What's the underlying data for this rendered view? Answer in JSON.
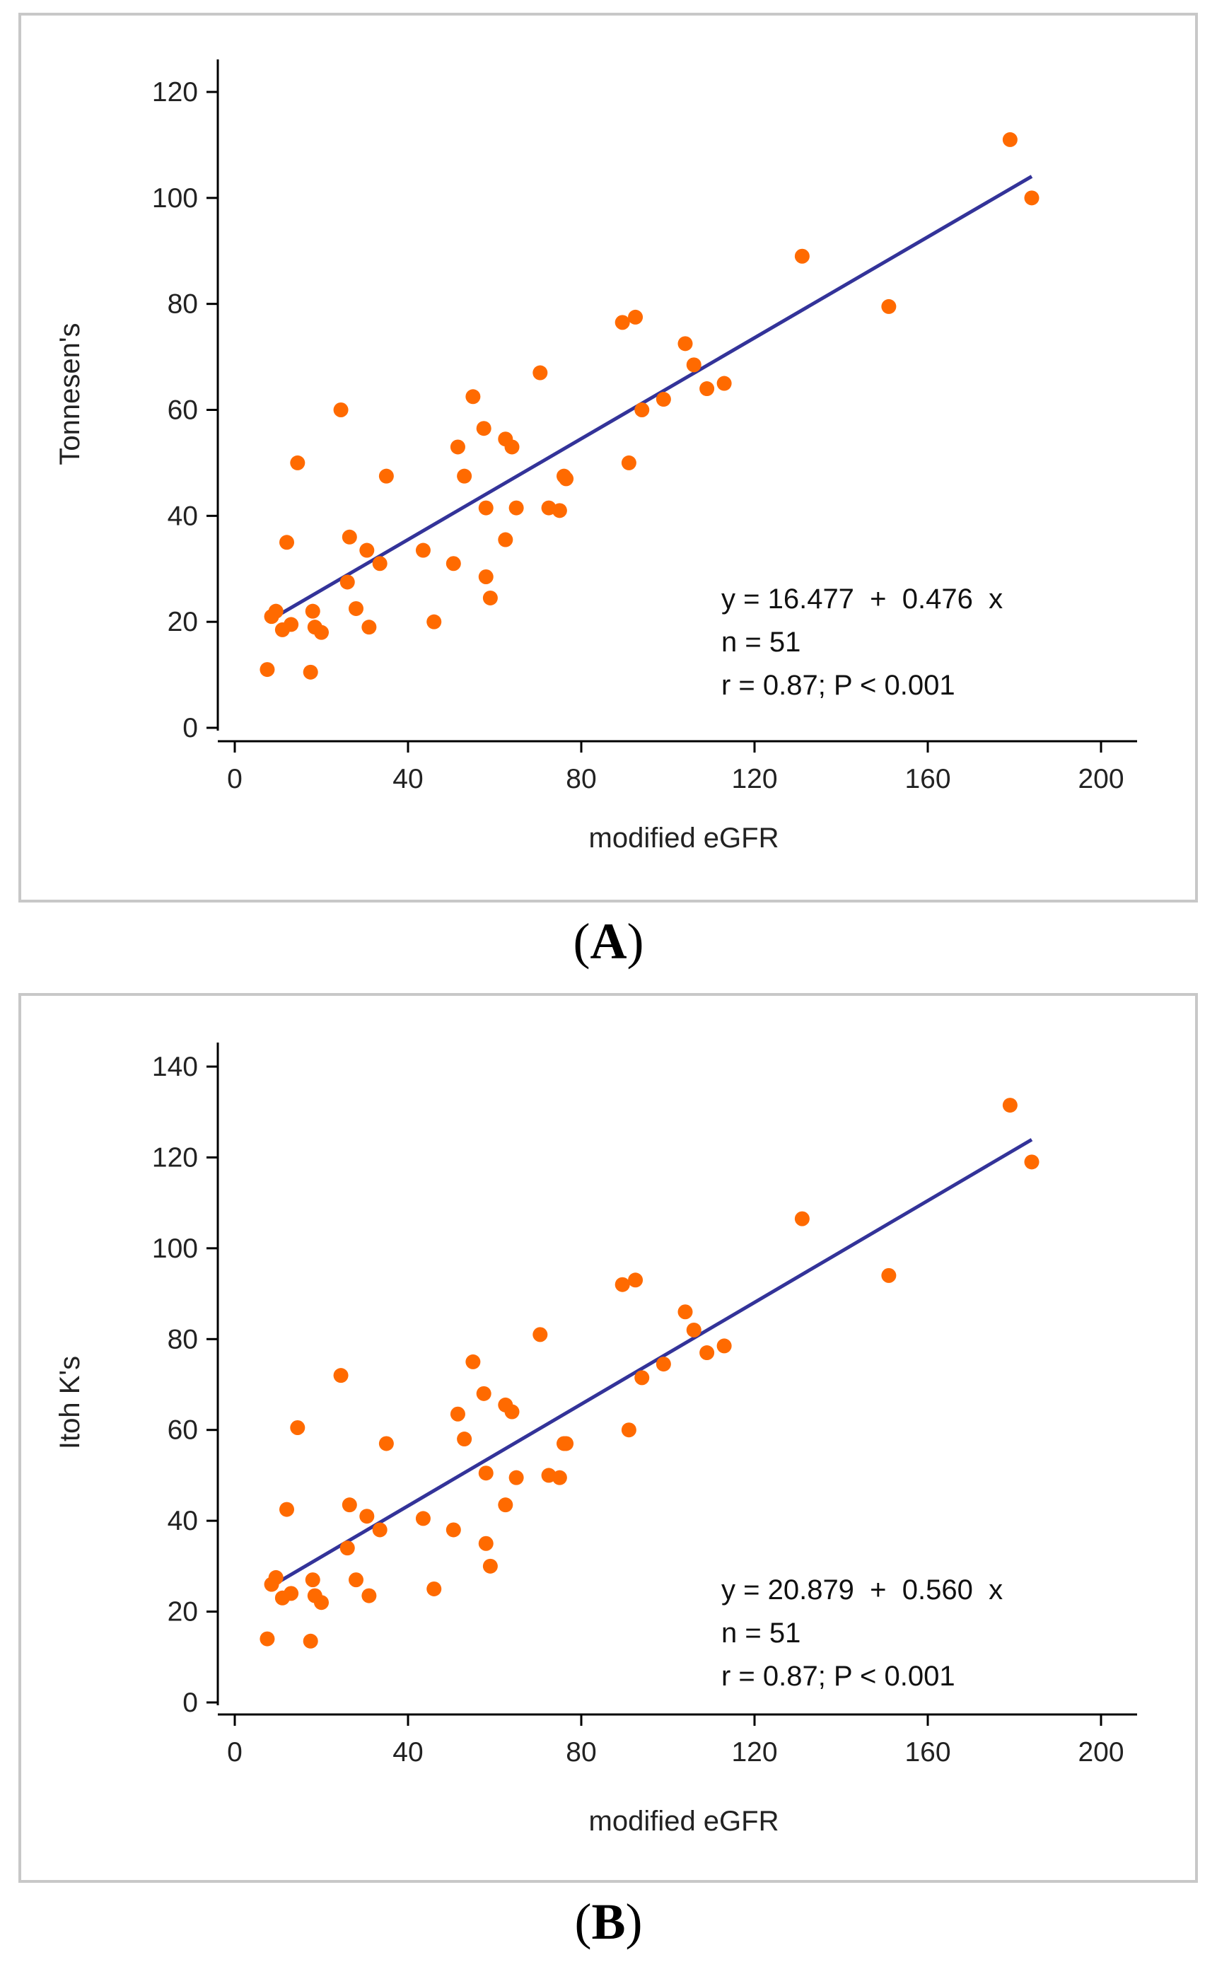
{
  "chart_data": [
    {
      "type": "scatter",
      "panel_label": "A",
      "xlabel": "modified eGFR",
      "ylabel": "Tonnesen's",
      "xlim": [
        0,
        200
      ],
      "ylim": [
        0,
        120
      ],
      "xticks": [
        0,
        40,
        80,
        120,
        160,
        200
      ],
      "yticks": [
        0,
        20,
        40,
        60,
        80,
        100,
        120
      ],
      "grid": false,
      "marker_color": "#ff6a00",
      "line_color": "#333399",
      "regression": {
        "intercept": 16.477,
        "slope": 0.476,
        "x_range": [
          8,
          184
        ]
      },
      "annotations": [
        "y = 16.477  +  0.476  x",
        "n = 51",
        "r = 0.87; P < 0.001"
      ],
      "points": [
        [
          7.5,
          11
        ],
        [
          8.5,
          21
        ],
        [
          9.5,
          22
        ],
        [
          11,
          18.5
        ],
        [
          12,
          35
        ],
        [
          13,
          19.5
        ],
        [
          14.5,
          50
        ],
        [
          17.5,
          10.5
        ],
        [
          18,
          22
        ],
        [
          18.5,
          19
        ],
        [
          20,
          18
        ],
        [
          24.5,
          60
        ],
        [
          26,
          27.5
        ],
        [
          26.5,
          36
        ],
        [
          28,
          22.5
        ],
        [
          30.5,
          33.5
        ],
        [
          31,
          19
        ],
        [
          33.5,
          31
        ],
        [
          35,
          47.5
        ],
        [
          43.5,
          33.5
        ],
        [
          46,
          20
        ],
        [
          50.5,
          31
        ],
        [
          51.5,
          53
        ],
        [
          53,
          47.5
        ],
        [
          55,
          62.5
        ],
        [
          57.5,
          56.5
        ],
        [
          58,
          41.5
        ],
        [
          58,
          28.5
        ],
        [
          59,
          24.5
        ],
        [
          62.5,
          54.5
        ],
        [
          62.5,
          35.5
        ],
        [
          64,
          53
        ],
        [
          65,
          41.5
        ],
        [
          70.5,
          67
        ],
        [
          72.5,
          41.5
        ],
        [
          75,
          41
        ],
        [
          76,
          47.5
        ],
        [
          76.5,
          47
        ],
        [
          89.5,
          76.5
        ],
        [
          91,
          50
        ],
        [
          92.5,
          77.5
        ],
        [
          94,
          60
        ],
        [
          99,
          62
        ],
        [
          104,
          72.5
        ],
        [
          106,
          68.5
        ],
        [
          109,
          64
        ],
        [
          113,
          65
        ],
        [
          131,
          89
        ],
        [
          151,
          79.5
        ],
        [
          179,
          111
        ],
        [
          184,
          100
        ]
      ]
    },
    {
      "type": "scatter",
      "panel_label": "B",
      "xlabel": "modified eGFR",
      "ylabel": "Itoh K's",
      "xlim": [
        0,
        200
      ],
      "ylim": [
        0,
        140
      ],
      "xticks": [
        0,
        40,
        80,
        120,
        160,
        200
      ],
      "yticks": [
        0,
        20,
        40,
        60,
        80,
        100,
        120,
        140
      ],
      "grid": false,
      "marker_color": "#ff6a00",
      "line_color": "#333399",
      "regression": {
        "intercept": 20.879,
        "slope": 0.56,
        "x_range": [
          8,
          184
        ]
      },
      "annotations": [
        "y = 20.879  +  0.560  x",
        "n = 51",
        "r = 0.87; P < 0.001"
      ],
      "points": [
        [
          7.5,
          14
        ],
        [
          8.5,
          26
        ],
        [
          9.5,
          27.5
        ],
        [
          11,
          23
        ],
        [
          12,
          42.5
        ],
        [
          13,
          24
        ],
        [
          14.5,
          60.5
        ],
        [
          17.5,
          13.5
        ],
        [
          18,
          27
        ],
        [
          18.5,
          23.5
        ],
        [
          20,
          22
        ],
        [
          24.5,
          72
        ],
        [
          26,
          34
        ],
        [
          26.5,
          43.5
        ],
        [
          28,
          27
        ],
        [
          30.5,
          41
        ],
        [
          31,
          23.5
        ],
        [
          33.5,
          38
        ],
        [
          35,
          57
        ],
        [
          43.5,
          40.5
        ],
        [
          46,
          25
        ],
        [
          50.5,
          38
        ],
        [
          51.5,
          63.5
        ],
        [
          53,
          58
        ],
        [
          55,
          75
        ],
        [
          57.5,
          68
        ],
        [
          58,
          50.5
        ],
        [
          58,
          35
        ],
        [
          59,
          30
        ],
        [
          62.5,
          65.5
        ],
        [
          62.5,
          43.5
        ],
        [
          64,
          64
        ],
        [
          65,
          49.5
        ],
        [
          70.5,
          81
        ],
        [
          72.5,
          50
        ],
        [
          75,
          49.5
        ],
        [
          76,
          57
        ],
        [
          76.5,
          57
        ],
        [
          89.5,
          92
        ],
        [
          91,
          60
        ],
        [
          92.5,
          93
        ],
        [
          94,
          71.5
        ],
        [
          99,
          74.5
        ],
        [
          104,
          86
        ],
        [
          106,
          82
        ],
        [
          109,
          77
        ],
        [
          113,
          78.5
        ],
        [
          131,
          106.5
        ],
        [
          151,
          94
        ],
        [
          179,
          131.5
        ],
        [
          184,
          119
        ]
      ]
    }
  ]
}
